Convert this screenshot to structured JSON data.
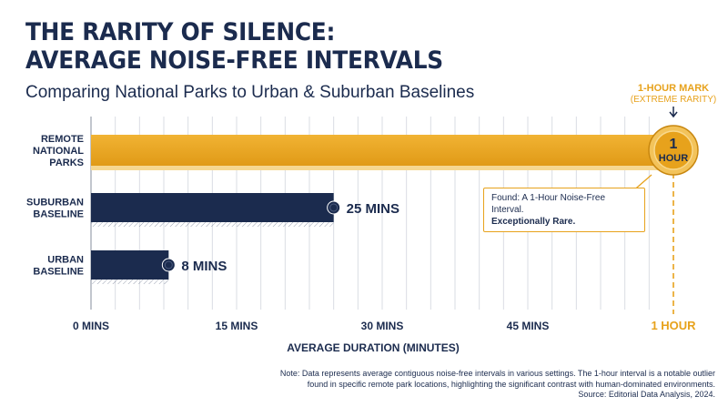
{
  "title_line1": "THE RARITY OF SILENCE:",
  "title_line2": "AVERAGE NOISE-FREE INTERVALS",
  "subtitle": "Comparing National Parks to Urban & Suburban Baselines",
  "colors": {
    "navy": "#1b2b4e",
    "gold": "#e7a21c",
    "gold_light": "#f4b52e",
    "grid": "#dadde3"
  },
  "chart_data": {
    "type": "bar",
    "orientation": "horizontal",
    "categories": [
      "REMOTE NATIONAL PARKS",
      "SUBURBAN BASELINE",
      "URBAN BASELINE"
    ],
    "values": [
      60,
      25,
      8
    ],
    "value_labels": [
      "",
      "25 MINS",
      "8 MINS"
    ],
    "bar_colors": [
      "#e7a21c",
      "#1b2b4e",
      "#1b2b4e"
    ],
    "xlabel": "AVERAGE DURATION (MINUTES)",
    "xlim": [
      0,
      60
    ],
    "x_ticks": [
      {
        "value": 0,
        "label": "0 MINS"
      },
      {
        "value": 15,
        "label": "15 MINS"
      },
      {
        "value": 30,
        "label": "30 MINS"
      },
      {
        "value": 45,
        "label": "45 MINS"
      },
      {
        "value": 60,
        "label": "1 HOUR"
      }
    ],
    "grid": true,
    "marker": {
      "value": 60,
      "label_line1": "1-HOUR MARK",
      "label_line2": "(EXTREME RARITY)",
      "badge_line1": "1",
      "badge_line2": "HOUR"
    },
    "annotation": {
      "line1": "Found: A 1-Hour Noise-Free Interval.",
      "line2": "Exceptionally Rare."
    }
  },
  "note": {
    "line1": "Note: Data represents average contiguous noise-free intervals in various settings. The 1-hour interval is a notable outlier",
    "line2": "found in specific remote park locations, highlighting the significant contrast with human-dominated environments.",
    "line3": "Source: Editorial Data Analysis, 2024."
  }
}
